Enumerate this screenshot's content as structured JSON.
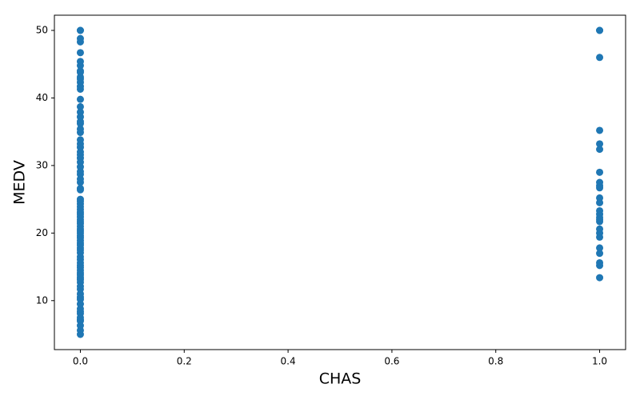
{
  "chart_data": {
    "type": "scatter",
    "x_label": "CHAS",
    "y_label": "MEDV",
    "color": "#1f77b4",
    "x": [
      0,
      0,
      0,
      0,
      0,
      0,
      0,
      0,
      0,
      0,
      0,
      0,
      0,
      0,
      0,
      0,
      0,
      0,
      0,
      0,
      0,
      0,
      0,
      0,
      0,
      0,
      0,
      0,
      0,
      0,
      0,
      0,
      0,
      0,
      0,
      0,
      0,
      0,
      0,
      0,
      0,
      0,
      0,
      0,
      0,
      0,
      0,
      0,
      0,
      0,
      0,
      0,
      0,
      0,
      0,
      0,
      0,
      0,
      0,
      0,
      0,
      0,
      0,
      0,
      0,
      0,
      0,
      0,
      0,
      0,
      0,
      0,
      0,
      0,
      0,
      0,
      0,
      0,
      0,
      0,
      0,
      0,
      0,
      0,
      0,
      1,
      1,
      1,
      1,
      1,
      1,
      1,
      1,
      1,
      1,
      1,
      1,
      1,
      1,
      1,
      1,
      1,
      1,
      1,
      1,
      1,
      1,
      1,
      1,
      1
    ],
    "values": [
      5,
      5.6,
      6.3,
      7,
      7.2,
      7.5,
      8.1,
      8.4,
      8.8,
      9.5,
      10.2,
      10.5,
      11,
      11.7,
      12.1,
      12.7,
      13.1,
      13.4,
      13.8,
      14.1,
      14.5,
      14.9,
      15.2,
      15.6,
      16.1,
      16.5,
      17.1,
      17.5,
      17.8,
      18.2,
      18.5,
      18.9,
      19.3,
      19.6,
      20,
      20.3,
      20.6,
      21,
      21.4,
      21.7,
      22,
      22.4,
      22.8,
      23.1,
      23.5,
      23.9,
      24.3,
      24.7,
      25,
      26.4,
      26.6,
      27.5,
      28,
      28.7,
      29.1,
      29.8,
      30.5,
      31.1,
      31.6,
      32,
      32.7,
      33.2,
      33.8,
      34.9,
      35.4,
      36.2,
      36.5,
      37.2,
      37.9,
      38.7,
      39.8,
      41.3,
      41.7,
      42.3,
      42.8,
      43.1,
      43.8,
      44,
      44.8,
      45.4,
      46.7,
      48.3,
      48.8,
      50,
      50,
      13.4,
      15.2,
      15.6,
      17,
      17.8,
      19.4,
      20,
      20.6,
      21.7,
      22,
      22.3,
      22.8,
      23.3,
      24.5,
      25.2,
      26.7,
      27,
      27.5,
      29,
      32.4,
      33.2,
      35.2,
      46,
      50,
      50
    ],
    "xlim": [
      -0.05,
      1.05
    ],
    "xticks": [
      {
        "value": 0,
        "label": "0.0"
      },
      0.2,
      0.4,
      0.6,
      0.8,
      {
        "value": 1,
        "label": "1.0"
      }
    ],
    "ylim": [
      2.75,
      52.25
    ],
    "yticks": [
      10,
      20,
      30,
      40,
      50
    ]
  }
}
